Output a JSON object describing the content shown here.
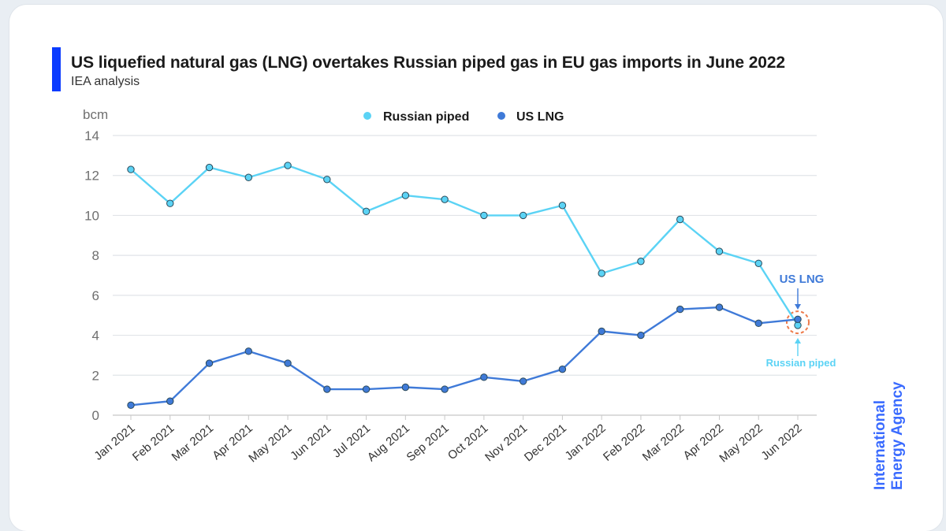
{
  "header": {
    "title": "US liquefied natural gas (LNG) overtakes Russian piped gas in EU gas imports in June 2022",
    "subtitle": "IEA analysis"
  },
  "brand": {
    "line1": "International",
    "line2": "Energy Agency",
    "color": "#3a6bff"
  },
  "chart_data": {
    "type": "line",
    "ylabel": "bcm",
    "ylim": [
      0,
      14
    ],
    "yticks": [
      "0",
      "2",
      "4",
      "6",
      "8",
      "10",
      "12",
      "14"
    ],
    "grid": true,
    "legend_position": "top-center",
    "categories": [
      "Jan 2021",
      "Feb 2021",
      "Mar 2021",
      "Apr 2021",
      "May 2021",
      "Jun 2021",
      "Jul 2021",
      "Aug 2021",
      "Sep 2021",
      "Oct 2021",
      "Nov 2021",
      "Dec 2021",
      "Jan 2022",
      "Feb 2022",
      "Mar 2022",
      "Apr 2022",
      "May 2022",
      "Jun 2022"
    ],
    "series": [
      {
        "name": "Russian piped",
        "color": "#5bd3f5",
        "values": [
          12.3,
          10.6,
          12.4,
          11.9,
          12.5,
          11.8,
          10.2,
          11.0,
          10.8,
          10.0,
          10.0,
          10.5,
          7.1,
          7.7,
          9.8,
          8.2,
          7.6,
          4.5
        ]
      },
      {
        "name": "US LNG",
        "color": "#3f7ad8",
        "values": [
          0.5,
          0.7,
          2.6,
          3.2,
          2.6,
          1.3,
          1.3,
          1.4,
          1.3,
          1.9,
          1.7,
          2.3,
          4.2,
          4.0,
          5.3,
          5.4,
          4.6,
          4.8
        ]
      }
    ],
    "annotations": [
      {
        "text": "US LNG",
        "color": "#3f7ad8"
      },
      {
        "text": "Russian piped",
        "color": "#5bd3f5"
      }
    ]
  }
}
